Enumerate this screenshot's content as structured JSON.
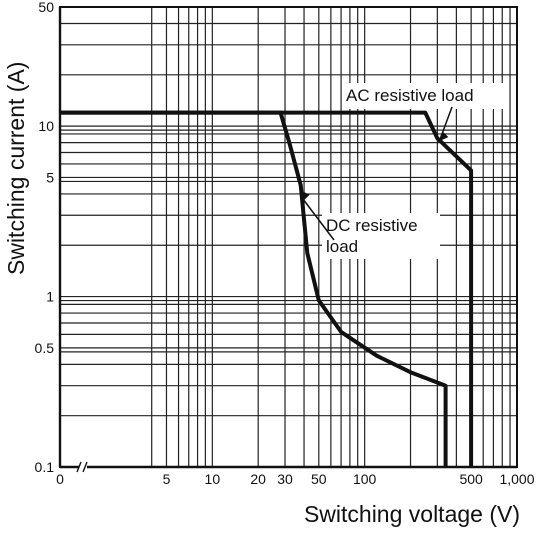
{
  "chart_data": {
    "type": "line",
    "title": "",
    "xlabel": "Switching voltage (V)",
    "ylabel": "Switching current (A)",
    "x_scale": "log",
    "y_scale": "log",
    "xlim": [
      1,
      1000
    ],
    "ylim": [
      0.1,
      50
    ],
    "grid": true,
    "legend": "none",
    "x_ticks": [
      {
        "value": 1,
        "label": "0"
      },
      {
        "value": 5,
        "label": "5"
      },
      {
        "value": 10,
        "label": "10"
      },
      {
        "value": 20,
        "label": "20"
      },
      {
        "value": 30,
        "label": "30"
      },
      {
        "value": 50,
        "label": "50"
      },
      {
        "value": 100,
        "label": "100"
      },
      {
        "value": 500,
        "label": "500"
      },
      {
        "value": 1000,
        "label": "1,000"
      }
    ],
    "y_ticks": [
      {
        "value": 0.1,
        "label": "0.1"
      },
      {
        "value": 0.5,
        "label": "0.5"
      },
      {
        "value": 1,
        "label": "1"
      },
      {
        "value": 5,
        "label": "5"
      },
      {
        "value": 10,
        "label": "10"
      },
      {
        "value": 50,
        "label": "50"
      }
    ],
    "series": [
      {
        "annotation": "AC resistive load",
        "x": [
          1,
          250,
          300,
          500,
          500
        ],
        "y": [
          12,
          12,
          8.5,
          5.5,
          0.1
        ]
      },
      {
        "annotation": "DC resistive load",
        "x": [
          1,
          28,
          32,
          38,
          42,
          50,
          70,
          120,
          200,
          340,
          340
        ],
        "y": [
          12,
          12,
          8,
          4.5,
          1.8,
          0.95,
          0.62,
          0.45,
          0.36,
          0.3,
          0.1
        ]
      }
    ],
    "annotations": [
      {
        "text": "AC resistive load",
        "lines": [
          "AC resistive load"
        ]
      },
      {
        "text": "DC resistive load",
        "lines": [
          "DC resistive",
          "load"
        ]
      }
    ],
    "axis_break": "x"
  }
}
